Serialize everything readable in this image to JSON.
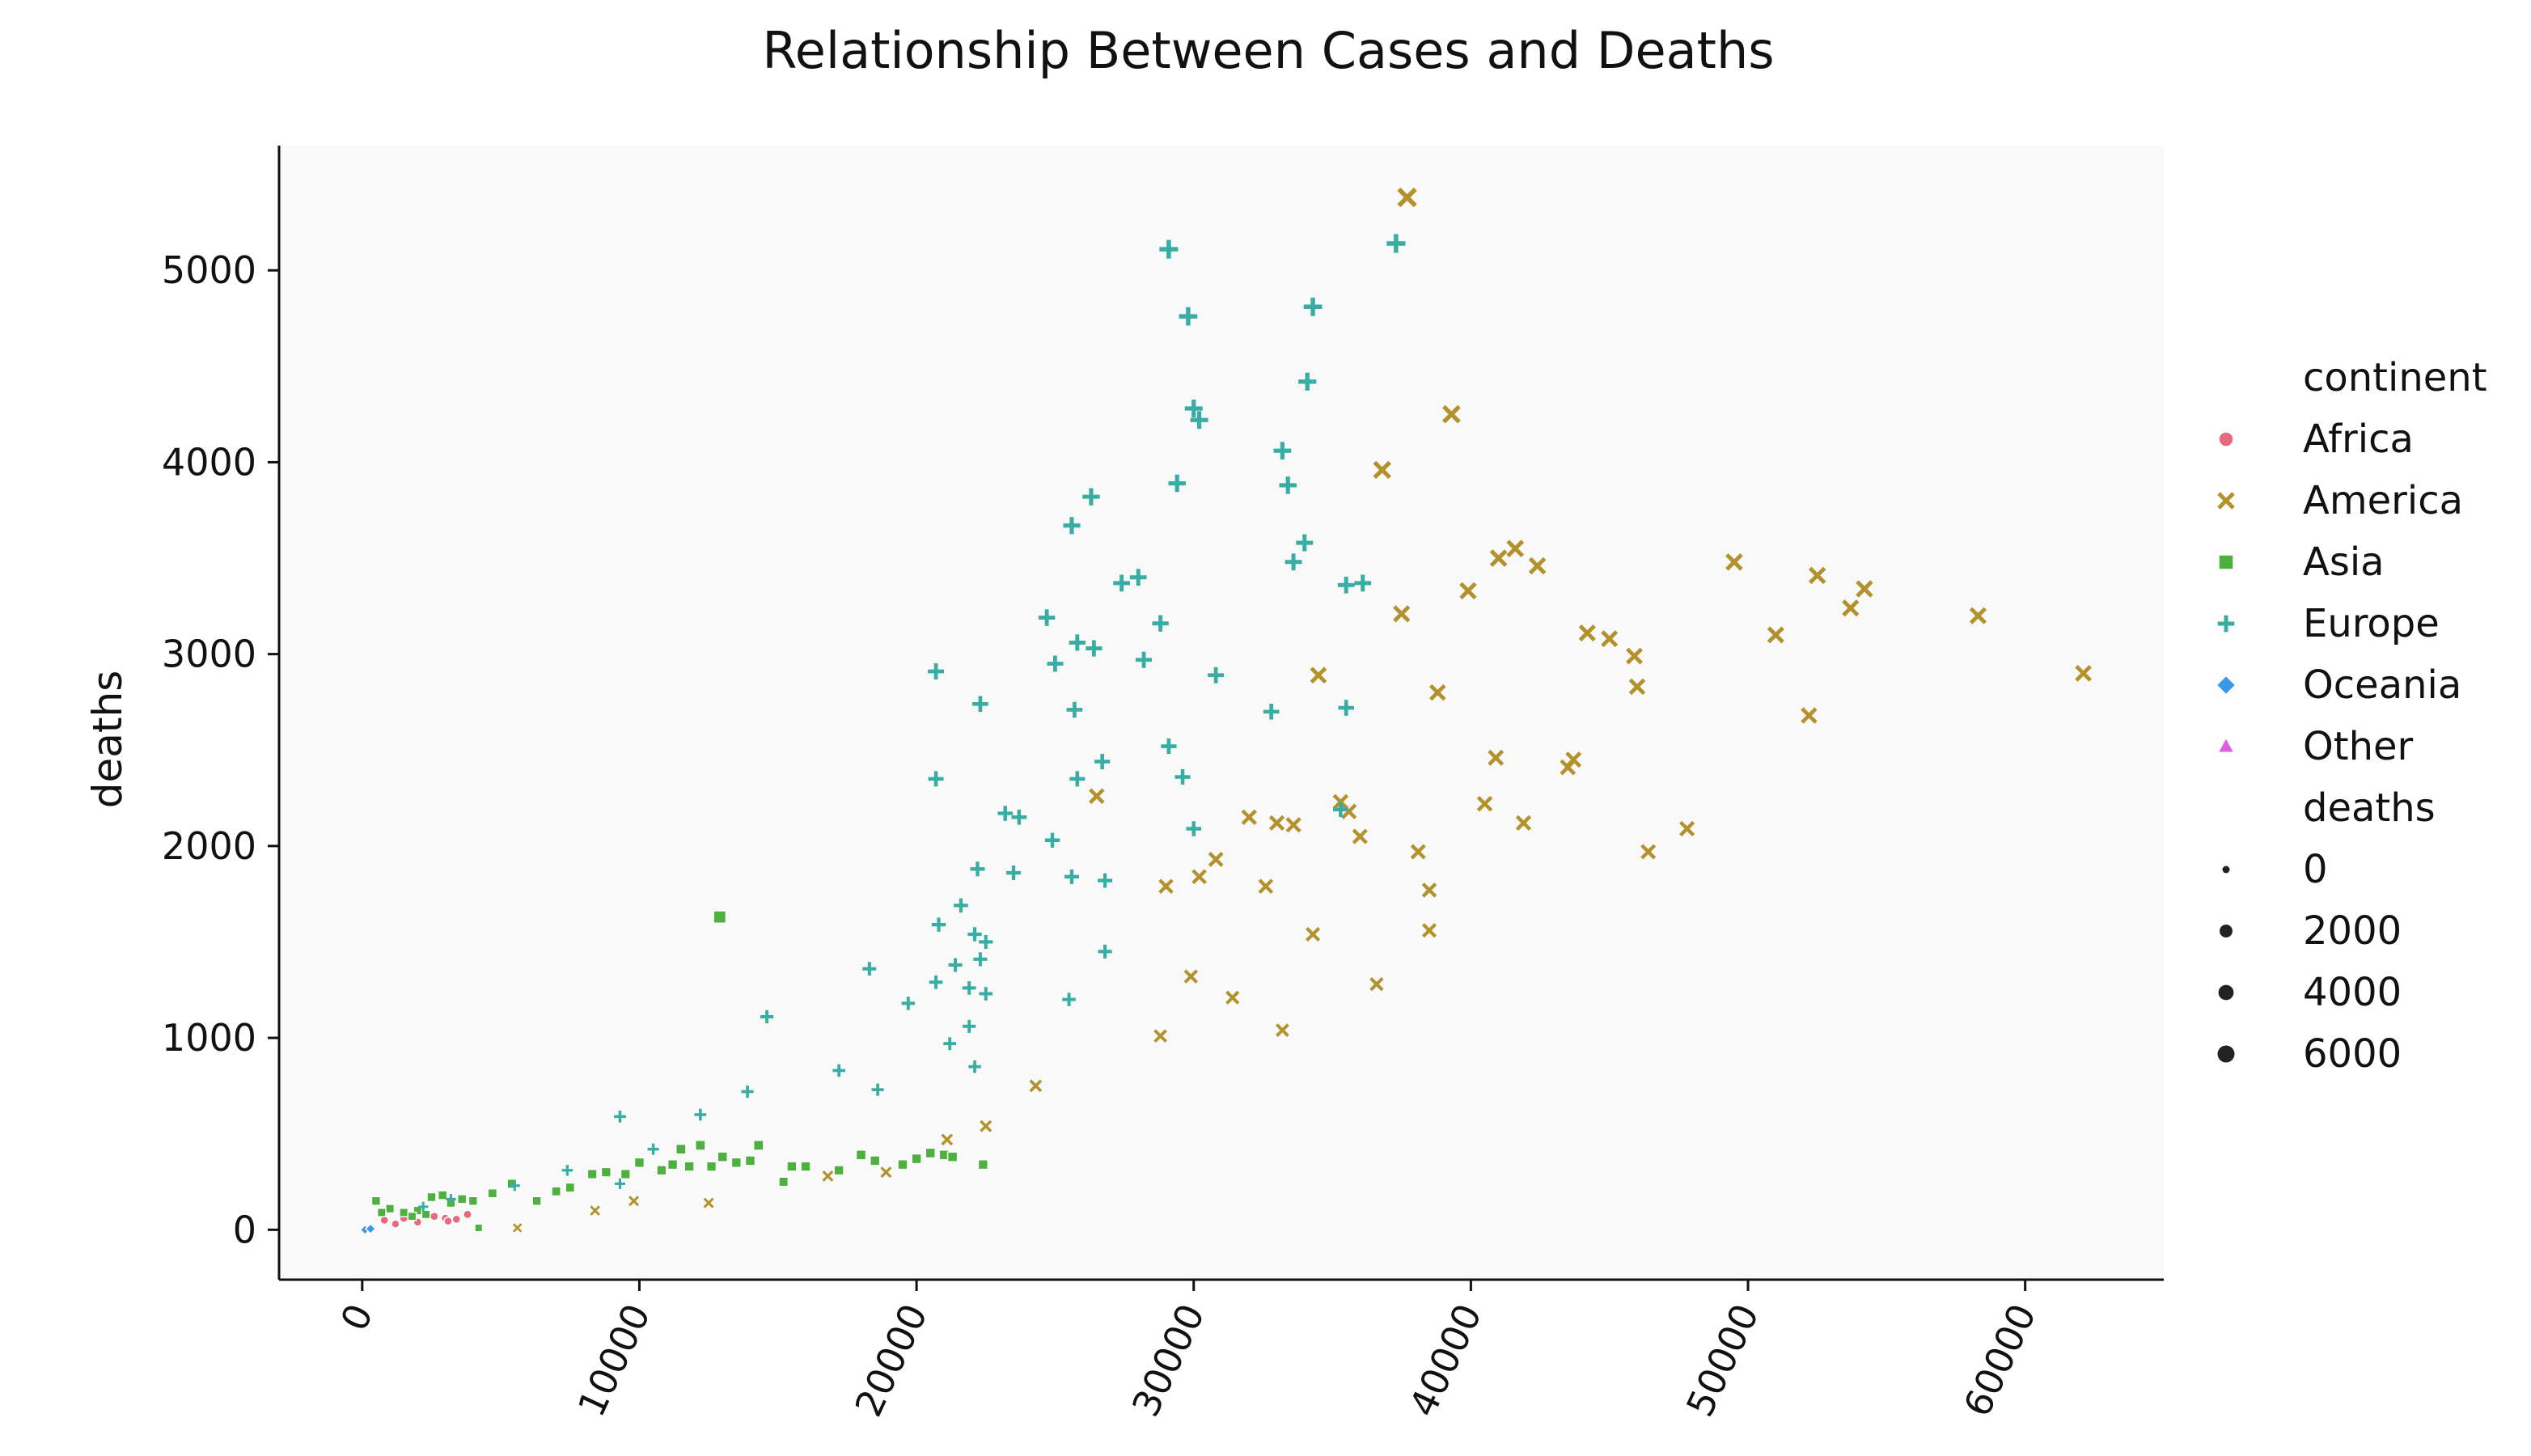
{
  "chart_data": {
    "type": "scatter",
    "title": "Relationship Between Cases and Deaths",
    "xlabel": "",
    "ylabel": "deaths",
    "xlim": [
      -3000,
      65000
    ],
    "ylim": [
      -260,
      5650
    ],
    "xticks": [
      0,
      10000,
      20000,
      30000,
      40000,
      50000,
      60000
    ],
    "yticks": [
      0,
      1000,
      2000,
      3000,
      4000,
      5000
    ],
    "grid": false,
    "legend_position": "right",
    "legend_hue_title": "continent",
    "legend_size_title": "deaths",
    "size_legend_values": [
      "0",
      "2000",
      "4000",
      "6000"
    ],
    "series": [
      {
        "name": "Africa",
        "color": "#e8697d",
        "marker": "circle",
        "points": [
          [
            800,
            50
          ],
          [
            1500,
            60
          ],
          [
            2000,
            40
          ],
          [
            2600,
            70
          ],
          [
            3000,
            60
          ],
          [
            3400,
            55
          ],
          [
            3800,
            80
          ],
          [
            1200,
            30
          ],
          [
            2200,
            90
          ],
          [
            3100,
            45
          ]
        ]
      },
      {
        "name": "America",
        "color": "#b3922e",
        "marker": "x",
        "points": [
          [
            37700,
            5380
          ],
          [
            39300,
            4250
          ],
          [
            36800,
            3960
          ],
          [
            41600,
            3550
          ],
          [
            41000,
            3500
          ],
          [
            42400,
            3460
          ],
          [
            49500,
            3480
          ],
          [
            52500,
            3410
          ],
          [
            54200,
            3340
          ],
          [
            53700,
            3240
          ],
          [
            58300,
            3200
          ],
          [
            39900,
            3330
          ],
          [
            37500,
            3210
          ],
          [
            44200,
            3110
          ],
          [
            45000,
            3080
          ],
          [
            51000,
            3100
          ],
          [
            45900,
            2990
          ],
          [
            34500,
            2890
          ],
          [
            38800,
            2800
          ],
          [
            46000,
            2830
          ],
          [
            62100,
            2900
          ],
          [
            52200,
            2680
          ],
          [
            26500,
            2260
          ],
          [
            40900,
            2460
          ],
          [
            43700,
            2450
          ],
          [
            43500,
            2410
          ],
          [
            40500,
            2220
          ],
          [
            35300,
            2230
          ],
          [
            35600,
            2180
          ],
          [
            32000,
            2150
          ],
          [
            33000,
            2120
          ],
          [
            33600,
            2110
          ],
          [
            41900,
            2120
          ],
          [
            36000,
            2050
          ],
          [
            47800,
            2090
          ],
          [
            38100,
            1970
          ],
          [
            46400,
            1970
          ],
          [
            30800,
            1930
          ],
          [
            30200,
            1840
          ],
          [
            29000,
            1790
          ],
          [
            32600,
            1790
          ],
          [
            38500,
            1770
          ],
          [
            34300,
            1540
          ],
          [
            38500,
            1560
          ],
          [
            29900,
            1320
          ],
          [
            31400,
            1210
          ],
          [
            36600,
            1280
          ],
          [
            28800,
            1010
          ],
          [
            33200,
            1040
          ],
          [
            24300,
            750
          ],
          [
            22500,
            540
          ],
          [
            21100,
            470
          ],
          [
            18900,
            300
          ],
          [
            16800,
            280
          ],
          [
            12500,
            140
          ],
          [
            9800,
            150
          ],
          [
            8400,
            100
          ],
          [
            5600,
            10
          ]
        ]
      },
      {
        "name": "Asia",
        "color": "#4eb03e",
        "marker": "square",
        "points": [
          [
            12900,
            1630
          ],
          [
            500,
            150
          ],
          [
            1000,
            110
          ],
          [
            1500,
            90
          ],
          [
            2000,
            100
          ],
          [
            2500,
            170
          ],
          [
            2900,
            180
          ],
          [
            3200,
            140
          ],
          [
            3600,
            160
          ],
          [
            4000,
            150
          ],
          [
            4200,
            10
          ],
          [
            4700,
            190
          ],
          [
            5400,
            240
          ],
          [
            6300,
            150
          ],
          [
            7000,
            200
          ],
          [
            7500,
            220
          ],
          [
            8300,
            290
          ],
          [
            8800,
            300
          ],
          [
            9500,
            290
          ],
          [
            10000,
            350
          ],
          [
            10800,
            310
          ],
          [
            11200,
            340
          ],
          [
            11500,
            420
          ],
          [
            11800,
            330
          ],
          [
            12200,
            440
          ],
          [
            12600,
            330
          ],
          [
            13000,
            380
          ],
          [
            13500,
            350
          ],
          [
            14000,
            360
          ],
          [
            14300,
            440
          ],
          [
            15200,
            250
          ],
          [
            15500,
            330
          ],
          [
            16000,
            330
          ],
          [
            17200,
            310
          ],
          [
            18000,
            390
          ],
          [
            18500,
            360
          ],
          [
            19500,
            340
          ],
          [
            20000,
            370
          ],
          [
            20500,
            400
          ],
          [
            21000,
            390
          ],
          [
            21300,
            380
          ],
          [
            22400,
            340
          ],
          [
            1800,
            70
          ],
          [
            2300,
            80
          ],
          [
            700,
            90
          ]
        ]
      },
      {
        "name": "Europe",
        "color": "#37ada3",
        "marker": "plus",
        "points": [
          [
            29100,
            5110
          ],
          [
            37300,
            5140
          ],
          [
            29800,
            4760
          ],
          [
            34300,
            4810
          ],
          [
            30000,
            4280
          ],
          [
            30200,
            4220
          ],
          [
            34100,
            4420
          ],
          [
            33200,
            4060
          ],
          [
            33400,
            3880
          ],
          [
            29400,
            3890
          ],
          [
            26300,
            3820
          ],
          [
            25600,
            3670
          ],
          [
            34000,
            3580
          ],
          [
            33600,
            3480
          ],
          [
            35500,
            3360
          ],
          [
            36100,
            3370
          ],
          [
            27400,
            3370
          ],
          [
            28000,
            3400
          ],
          [
            24700,
            3190
          ],
          [
            28800,
            3160
          ],
          [
            25800,
            3060
          ],
          [
            26400,
            3030
          ],
          [
            25000,
            2950
          ],
          [
            28200,
            2970
          ],
          [
            30800,
            2890
          ],
          [
            20700,
            2910
          ],
          [
            22300,
            2740
          ],
          [
            25700,
            2710
          ],
          [
            32800,
            2700
          ],
          [
            35500,
            2720
          ],
          [
            29100,
            2520
          ],
          [
            26700,
            2440
          ],
          [
            29600,
            2360
          ],
          [
            25800,
            2350
          ],
          [
            20700,
            2350
          ],
          [
            23200,
            2170
          ],
          [
            23700,
            2150
          ],
          [
            35300,
            2190
          ],
          [
            24900,
            2030
          ],
          [
            30000,
            2090
          ],
          [
            22200,
            1880
          ],
          [
            23500,
            1860
          ],
          [
            25600,
            1840
          ],
          [
            26800,
            1820
          ],
          [
            21600,
            1690
          ],
          [
            20800,
            1590
          ],
          [
            22100,
            1540
          ],
          [
            22500,
            1500
          ],
          [
            26800,
            1450
          ],
          [
            22300,
            1410
          ],
          [
            21400,
            1380
          ],
          [
            18300,
            1360
          ],
          [
            20700,
            1290
          ],
          [
            21900,
            1260
          ],
          [
            22500,
            1230
          ],
          [
            19700,
            1180
          ],
          [
            25500,
            1200
          ],
          [
            14600,
            1110
          ],
          [
            21900,
            1060
          ],
          [
            21200,
            970
          ],
          [
            22100,
            850
          ],
          [
            17200,
            830
          ],
          [
            13900,
            720
          ],
          [
            18600,
            730
          ],
          [
            9300,
            590
          ],
          [
            12200,
            600
          ],
          [
            10500,
            420
          ],
          [
            7400,
            310
          ],
          [
            9300,
            240
          ],
          [
            5500,
            230
          ],
          [
            3200,
            160
          ],
          [
            2200,
            120
          ]
        ]
      },
      {
        "name": "Oceania",
        "color": "#3a9ae6",
        "marker": "diamond",
        "points": [
          [
            100,
            0
          ],
          [
            300,
            5
          ]
        ]
      },
      {
        "name": "Other",
        "color": "#db5fde",
        "marker": "triangle",
        "points": []
      }
    ]
  }
}
